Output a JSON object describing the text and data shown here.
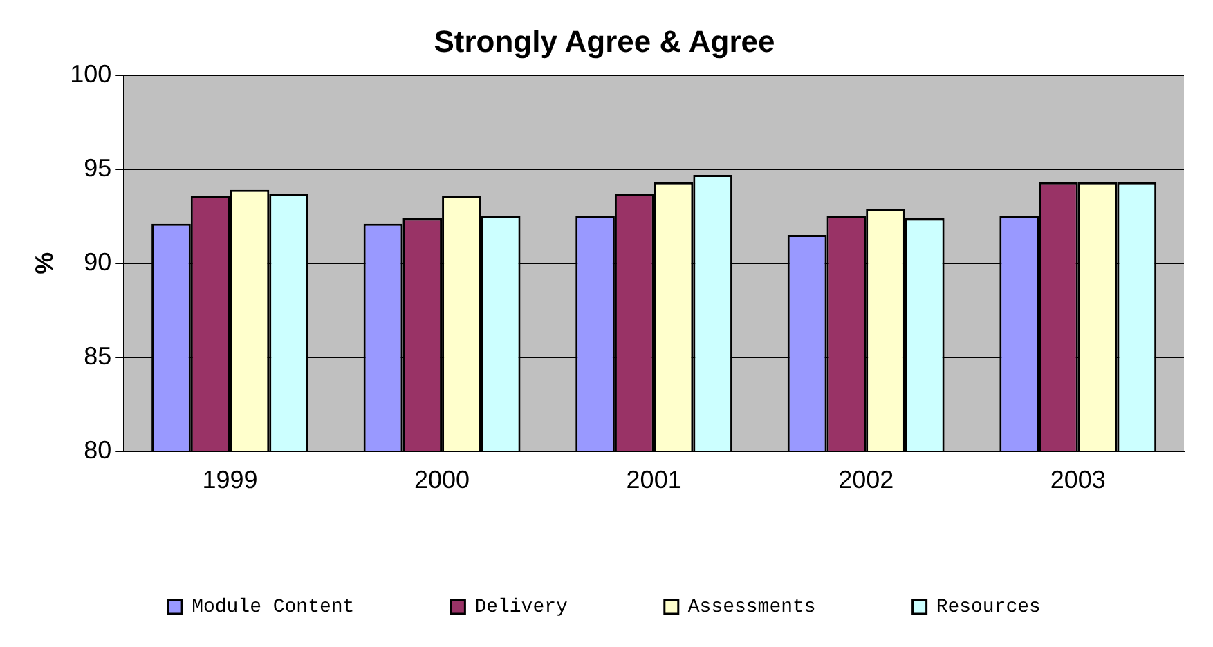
{
  "chart_data": {
    "type": "bar",
    "title": "Strongly Agree & Agree",
    "ylabel": "%",
    "categories": [
      "1999",
      "2000",
      "2001",
      "2002",
      "2003"
    ],
    "series": [
      {
        "name": "Module Content",
        "color": "#9999ff",
        "values": [
          92.1,
          92.1,
          92.5,
          91.5,
          92.5
        ]
      },
      {
        "name": "Delivery",
        "color": "#993366",
        "values": [
          93.6,
          92.4,
          93.7,
          92.5,
          94.3
        ]
      },
      {
        "name": "Assessments",
        "color": "#ffffcc",
        "values": [
          93.9,
          93.6,
          94.3,
          92.9,
          94.3
        ]
      },
      {
        "name": "Resources",
        "color": "#ccffff",
        "values": [
          93.7,
          92.5,
          94.7,
          92.4,
          94.3
        ]
      }
    ],
    "ylim": [
      80,
      100
    ],
    "yticks": [
      80,
      85,
      90,
      95,
      100
    ],
    "grid": "y",
    "legend": "bottom"
  }
}
